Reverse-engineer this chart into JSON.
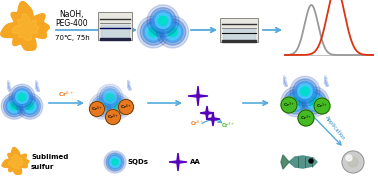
{
  "bg_color": "#ffffff",
  "sulfur_color": "#f5a623",
  "sqd_colors": [
    "#2255bb",
    "#3388dd",
    "#44aaee",
    "#00ccee",
    "#00ddcc"
  ],
  "cr6_color": "#e87820",
  "cr3_color": "#44bb22",
  "aa_color": "#5500bb",
  "arrow_color": "#55aadd",
  "lightning_color": "#aaddff",
  "lightning_dark": "#8899cc",
  "peak_gray": "#999999",
  "peak_orange": "#dd3311",
  "text_naoh": "NaOH,",
  "text_peg": "PEG-400",
  "text_temp": "70℃, 75h",
  "label_sublimed1": "Sublimed",
  "label_sublimed2": "sulfur",
  "label_sqds": "SQDs",
  "label_aa": "AA",
  "label_application": "Application",
  "label_cr6": "Cr$^{6+}$",
  "label_cr3": "Cr$^{3+}$"
}
